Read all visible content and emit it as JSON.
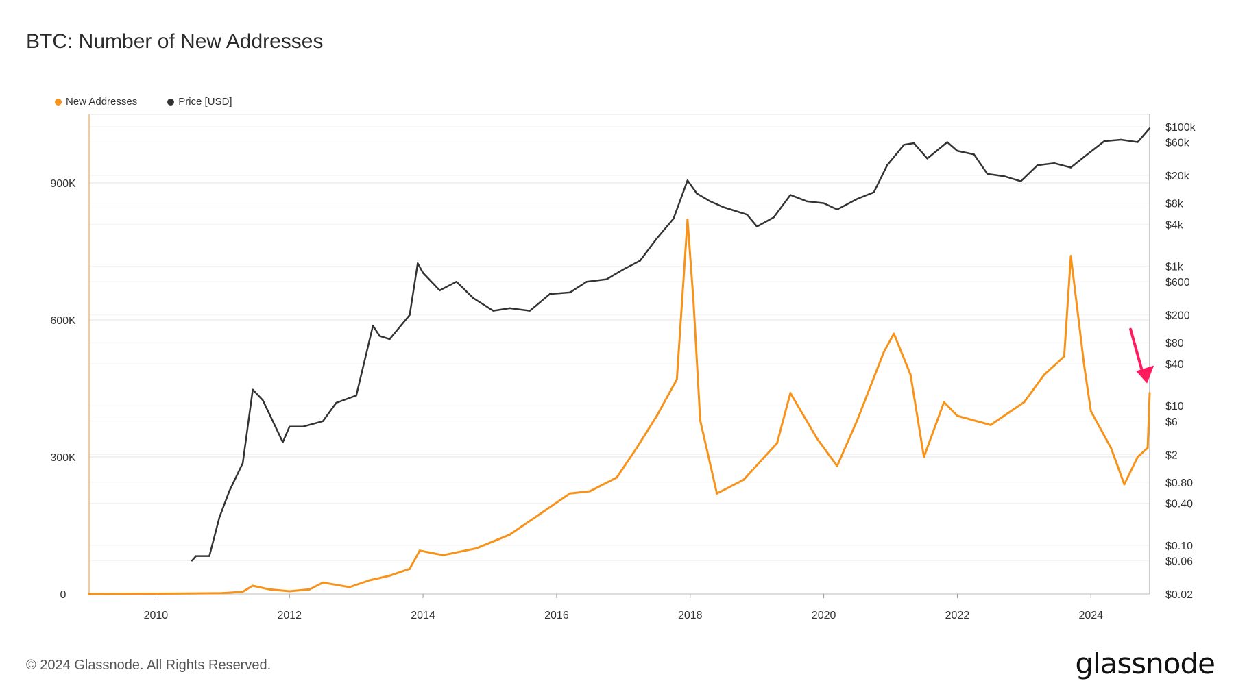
{
  "title": "BTC: Number of New Addresses",
  "footer": "© 2024 Glassnode. All Rights Reserved.",
  "brand": "glassnode",
  "colors": {
    "new_addresses": "#f7931a",
    "price": "#333333",
    "arrow": "#ff1a5e",
    "grid": "#ececec"
  },
  "chart_data": {
    "type": "line",
    "title": "BTC: Number of New Addresses",
    "legend": {
      "placement": "top-left",
      "entries": [
        "New Addresses",
        "Price [USD]"
      ]
    },
    "grid": true,
    "x_ticks": [
      "2010",
      "2012",
      "2014",
      "2016",
      "2018",
      "2020",
      "2022",
      "2024"
    ],
    "x_range": [
      2009.0,
      2024.88
    ],
    "y_left": {
      "ticks": [
        "0",
        "300K",
        "600K",
        "900K"
      ],
      "tick_values": [
        0,
        300000,
        600000,
        900000
      ],
      "range": [
        0,
        1050000
      ]
    },
    "y_right": {
      "scale": "log",
      "ticks": [
        "$100k",
        "$60k",
        "$20k",
        "$8k",
        "$4k",
        "$1k",
        "$600",
        "$200",
        "$80",
        "$40",
        "$10",
        "$6",
        "$2",
        "$0.80",
        "$0.40",
        "$0.10",
        "$0.06",
        "$0.02"
      ],
      "tick_values": [
        100000,
        60000,
        20000,
        8000,
        4000,
        1000,
        600,
        200,
        80,
        40,
        10,
        6,
        2,
        0.8,
        0.4,
        0.1,
        0.06,
        0.02
      ],
      "range": [
        0.02,
        150000
      ]
    },
    "series": [
      {
        "name": "New Addresses",
        "axis": "left",
        "x": [
          2009.0,
          2010.5,
          2011.0,
          2011.3,
          2011.45,
          2011.7,
          2012.0,
          2012.3,
          2012.5,
          2012.9,
          2013.2,
          2013.5,
          2013.8,
          2013.95,
          2014.3,
          2014.8,
          2015.3,
          2015.8,
          2016.2,
          2016.5,
          2016.9,
          2017.2,
          2017.5,
          2017.8,
          2017.96,
          2018.05,
          2018.15,
          2018.4,
          2018.8,
          2019.3,
          2019.5,
          2019.9,
          2020.2,
          2020.5,
          2020.9,
          2021.05,
          2021.3,
          2021.5,
          2021.8,
          2022.0,
          2022.5,
          2023.0,
          2023.3,
          2023.6,
          2023.7,
          2023.9,
          2024.0,
          2024.3,
          2024.5,
          2024.7,
          2024.85,
          2024.88
        ],
        "values": [
          0,
          1000,
          2000,
          5000,
          18000,
          10000,
          6000,
          10000,
          25000,
          15000,
          30000,
          40000,
          55000,
          95000,
          85000,
          100000,
          130000,
          180000,
          220000,
          225000,
          255000,
          320000,
          390000,
          470000,
          820000,
          640000,
          380000,
          220000,
          250000,
          330000,
          440000,
          340000,
          280000,
          380000,
          530000,
          570000,
          480000,
          300000,
          420000,
          390000,
          370000,
          420000,
          480000,
          520000,
          740000,
          500000,
          400000,
          320000,
          240000,
          300000,
          320000,
          440000
        ]
      },
      {
        "name": "Price [USD]",
        "axis": "right",
        "x": [
          2010.54,
          2010.6,
          2010.8,
          2010.95,
          2011.1,
          2011.3,
          2011.45,
          2011.6,
          2011.9,
          2012.0,
          2012.2,
          2012.5,
          2012.7,
          2013.0,
          2013.25,
          2013.35,
          2013.5,
          2013.8,
          2013.92,
          2014.0,
          2014.25,
          2014.5,
          2014.75,
          2015.05,
          2015.3,
          2015.6,
          2015.9,
          2016.2,
          2016.45,
          2016.75,
          2017.0,
          2017.25,
          2017.5,
          2017.75,
          2017.96,
          2018.1,
          2018.3,
          2018.5,
          2018.85,
          2019.0,
          2019.25,
          2019.5,
          2019.75,
          2020.0,
          2020.2,
          2020.5,
          2020.75,
          2020.95,
          2021.2,
          2021.35,
          2021.55,
          2021.85,
          2022.0,
          2022.25,
          2022.45,
          2022.7,
          2022.95,
          2023.2,
          2023.45,
          2023.7,
          2023.9,
          2024.2,
          2024.45,
          2024.7,
          2024.88
        ],
        "values": [
          0.06,
          0.07,
          0.07,
          0.25,
          0.6,
          1.5,
          17,
          12,
          3,
          5,
          5,
          6,
          11,
          14,
          140,
          100,
          90,
          200,
          1100,
          800,
          450,
          600,
          350,
          230,
          250,
          230,
          400,
          420,
          600,
          650,
          900,
          1200,
          2500,
          4800,
          17000,
          11000,
          8500,
          7000,
          5500,
          3700,
          5000,
          10500,
          8500,
          8000,
          6500,
          9200,
          11500,
          28000,
          55000,
          58000,
          35000,
          60000,
          45000,
          40000,
          21000,
          19500,
          16500,
          28000,
          30000,
          26000,
          37000,
          62000,
          65000,
          60000,
          95000
        ]
      }
    ]
  }
}
